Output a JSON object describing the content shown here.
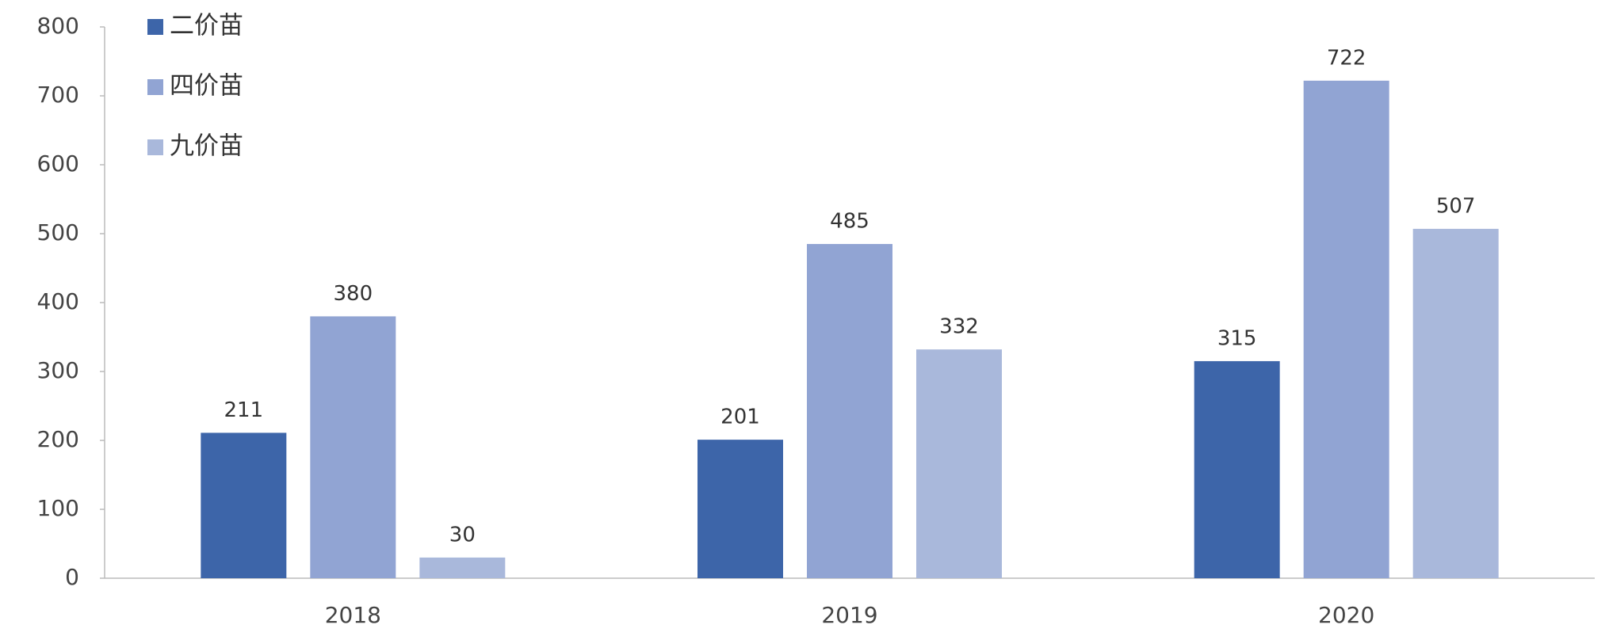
{
  "chart_data": {
    "type": "bar",
    "categories": [
      "2018",
      "2019",
      "2020"
    ],
    "series": [
      {
        "name": "二价苗",
        "color": "#3d65a9",
        "values": [
          211,
          201,
          315
        ]
      },
      {
        "name": "四价苗",
        "color": "#91a4d3",
        "values": [
          380,
          485,
          722
        ]
      },
      {
        "name": "九价苗",
        "color": "#a9b8db",
        "values": [
          30,
          332,
          507
        ]
      }
    ],
    "ylim": [
      0,
      800
    ],
    "yticks": [
      0,
      100,
      200,
      300,
      400,
      500,
      600,
      700,
      800
    ],
    "grid": false,
    "legend": "top-left"
  }
}
